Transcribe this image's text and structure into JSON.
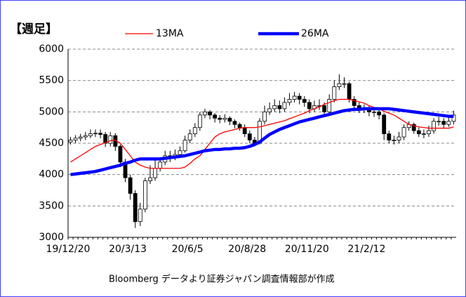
{
  "chart_data": {
    "type": "candlestick",
    "title": "【週足】",
    "source": "Bloomberg データより証券ジャパン調査情報部が作成",
    "categories": [
      "19/12/20",
      null,
      null,
      null,
      null,
      null,
      null,
      null,
      null,
      null,
      null,
      null,
      "20/3/13",
      null,
      null,
      null,
      null,
      null,
      null,
      null,
      null,
      null,
      null,
      null,
      "20/6/5",
      null,
      null,
      null,
      null,
      null,
      null,
      null,
      null,
      null,
      null,
      null,
      "20/8/28",
      null,
      null,
      null,
      null,
      null,
      null,
      null,
      null,
      null,
      null,
      null,
      "20/11/20",
      null,
      null,
      null,
      null,
      null,
      null,
      null,
      null,
      null,
      null,
      null,
      "21/2/12",
      null,
      null,
      null,
      null,
      null,
      null,
      null,
      null,
      null,
      null,
      null,
      null,
      null,
      null,
      null,
      null,
      null
    ],
    "candles": {
      "open": [
        4520,
        4550,
        4580,
        4600,
        4620,
        4650,
        4660,
        4640,
        4500,
        4620,
        4450,
        4200,
        3950,
        3700,
        3250,
        3450,
        3900,
        3950,
        4100,
        4200,
        4300,
        4280,
        4320,
        4380,
        4550,
        4650,
        4750,
        4950,
        5000,
        4950,
        4900,
        4880,
        4900,
        4850,
        4800,
        4750,
        4650,
        4550,
        4500,
        4850,
        5000,
        5050,
        5100,
        5050,
        5150,
        5200,
        5250,
        5200,
        5150,
        5050,
        5100,
        5100,
        5000,
        5200,
        5400,
        5450,
        5450,
        5200,
        5100,
        5050,
        5050,
        5000,
        5000,
        4950,
        4650,
        4550,
        4550,
        4600,
        4750,
        4800,
        4700,
        4650,
        4650,
        4700,
        4850,
        4850,
        4800,
        4850
      ],
      "high": [
        4600,
        4630,
        4650,
        4680,
        4720,
        4720,
        4720,
        4680,
        4680,
        4660,
        4480,
        4250,
        4000,
        3750,
        3550,
        3950,
        4150,
        4250,
        4280,
        4380,
        4380,
        4400,
        4450,
        4620,
        4720,
        4820,
        5000,
        5050,
        5030,
        4980,
        4950,
        4960,
        4930,
        4880,
        4830,
        4800,
        4700,
        4600,
        4900,
        5100,
        5150,
        5200,
        5180,
        5230,
        5300,
        5320,
        5300,
        5250,
        5200,
        5180,
        5200,
        5150,
        5280,
        5500,
        5600,
        5550,
        5480,
        5250,
        5150,
        5120,
        5100,
        5080,
        5050,
        4980,
        4700,
        4620,
        4680,
        4800,
        4850,
        4830,
        4750,
        4720,
        4780,
        4900,
        4920,
        4900,
        4920,
        5020
      ],
      "low": [
        4480,
        4500,
        4530,
        4550,
        4580,
        4600,
        4580,
        4440,
        4450,
        4380,
        4120,
        3880,
        3600,
        3150,
        3180,
        3400,
        3850,
        3900,
        4050,
        4150,
        4200,
        4230,
        4280,
        4350,
        4500,
        4600,
        4700,
        4900,
        4880,
        4830,
        4820,
        4830,
        4790,
        4740,
        4700,
        4600,
        4500,
        4450,
        4480,
        4800,
        4950,
        5000,
        4980,
        5000,
        5100,
        5150,
        5120,
        5080,
        4980,
        5000,
        5030,
        4940,
        4980,
        5150,
        5350,
        5380,
        5150,
        5050,
        4980,
        4980,
        4930,
        4920,
        4880,
        4550,
        4500,
        4480,
        4500,
        4550,
        4700,
        4650,
        4600,
        4580,
        4600,
        4650,
        4780,
        4740,
        4760,
        4800
      ],
      "close": [
        4550,
        4580,
        4600,
        4620,
        4650,
        4660,
        4640,
        4500,
        4620,
        4450,
        4200,
        3950,
        3700,
        3250,
        3450,
        3900,
        3950,
        4100,
        4200,
        4300,
        4280,
        4320,
        4380,
        4550,
        4650,
        4750,
        4950,
        5000,
        4950,
        4900,
        4880,
        4900,
        4850,
        4800,
        4750,
        4650,
        4550,
        4500,
        4850,
        5000,
        5050,
        5100,
        5050,
        5150,
        5200,
        5250,
        5200,
        5150,
        5050,
        5100,
        5100,
        5000,
        5200,
        5400,
        5450,
        5450,
        5200,
        5100,
        5050,
        5050,
        5000,
        5000,
        4950,
        4650,
        4550,
        4550,
        4600,
        4750,
        4800,
        4700,
        4650,
        4650,
        4700,
        4850,
        4850,
        4800,
        4850,
        4950
      ]
    },
    "series": [
      {
        "name": "13MA",
        "color": "#ff0000",
        "values": [
          4200,
          4250,
          4300,
          4350,
          4400,
          4450,
          4480,
          4510,
          4540,
          4550,
          4500,
          4400,
          4300,
          4200,
          4150,
          4120,
          4100,
          4100,
          4100,
          4100,
          4100,
          4100,
          4100,
          4120,
          4180,
          4250,
          4300,
          4400,
          4500,
          4600,
          4650,
          4680,
          4700,
          4720,
          4740,
          4750,
          4750,
          4750,
          4760,
          4780,
          4800,
          4820,
          4840,
          4860,
          4890,
          4920,
          4950,
          4980,
          5020,
          5050,
          5080,
          5120,
          5150,
          5180,
          5200,
          5200,
          5200,
          5180,
          5160,
          5140,
          5100,
          5070,
          5050,
          5010,
          4980,
          4950,
          4900,
          4850,
          4800,
          4780,
          4760,
          4750,
          4740,
          4740,
          4740,
          4740,
          4740,
          4760
        ]
      },
      {
        "name": "26MA",
        "color": "#0000ff",
        "values": [
          4000,
          4010,
          4020,
          4030,
          4040,
          4050,
          4070,
          4090,
          4110,
          4130,
          4150,
          4180,
          4200,
          4230,
          4250,
          4250,
          4250,
          4250,
          4250,
          4260,
          4270,
          4280,
          4290,
          4300,
          4320,
          4340,
          4360,
          4380,
          4390,
          4400,
          4400,
          4410,
          4410,
          4420,
          4420,
          4430,
          4450,
          4480,
          4520,
          4580,
          4640,
          4680,
          4720,
          4750,
          4780,
          4810,
          4840,
          4860,
          4880,
          4900,
          4920,
          4940,
          4960,
          4980,
          5000,
          5020,
          5030,
          5040,
          5040,
          5050,
          5050,
          5050,
          5050,
          5050,
          5050,
          5040,
          5030,
          5020,
          5010,
          5000,
          4990,
          4980,
          4970,
          4960,
          4950,
          4940,
          4930,
          4930
        ]
      }
    ],
    "up_color": "#ffffff",
    "down_color": "#000000",
    "ylim": [
      3000,
      6000
    ],
    "yticks": [
      3000,
      3500,
      4000,
      4500,
      5000,
      5500,
      6000
    ],
    "grid": true
  }
}
